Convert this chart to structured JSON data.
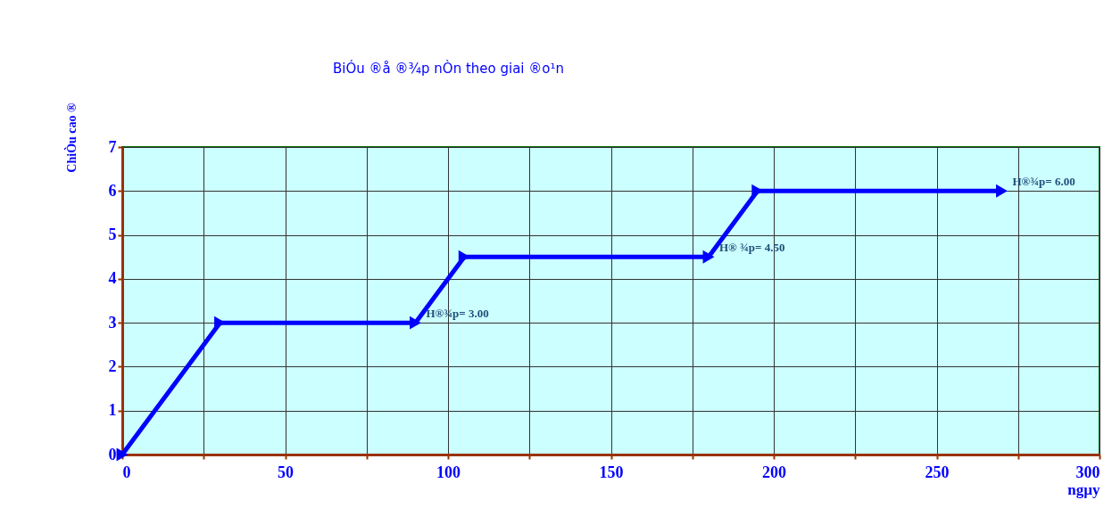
{
  "chart_data": {
    "type": "line",
    "title": "BiÓu ®å ®¾p nÒn theo giai ®o¹n",
    "xlabel": "ngµy",
    "ylabel": "ChiÒu cao ®",
    "x": [
      0,
      30,
      90,
      105,
      180,
      195,
      270
    ],
    "series": [
      {
        "color": "#0000ff",
        "values": [
          0,
          3,
          3,
          4.5,
          4.5,
          6,
          6
        ]
      }
    ],
    "xlim": [
      0,
      300
    ],
    "ylim": [
      0,
      7
    ],
    "xticks": [
      0,
      {
        "value": 25,
        "label": null
      },
      50,
      {
        "value": 75,
        "label": null
      },
      100,
      {
        "value": 125,
        "label": null
      },
      150,
      {
        "value": 175,
        "label": null
      },
      200,
      {
        "value": 225,
        "label": null
      },
      250,
      {
        "value": 275,
        "label": null
      },
      300
    ],
    "yticks": [
      0,
      1,
      2,
      3,
      4,
      5,
      6,
      7
    ],
    "annotations": [
      {
        "text": "H®¾p= 3.00",
        "x": 90,
        "y": 3
      },
      {
        "text": "H® ¾p= 4.50",
        "x": 180,
        "y": 4.5
      },
      {
        "text": "H®¾p= 6.00",
        "x": 270,
        "y": 6
      }
    ],
    "grid": true,
    "marker": "triangle",
    "line_style": "solid"
  }
}
